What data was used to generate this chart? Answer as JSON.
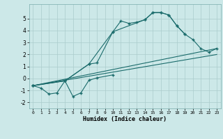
{
  "xlabel": "Humidex (Indice chaleur)",
  "background_color": "#cce8e8",
  "grid_color": "#aacccc",
  "line_color": "#1a6b6b",
  "xlim": [
    -0.5,
    23.5
  ],
  "ylim": [
    -2.5,
    6.2
  ],
  "xticks": [
    0,
    1,
    2,
    3,
    4,
    5,
    6,
    7,
    8,
    9,
    10,
    11,
    12,
    13,
    14,
    15,
    16,
    17,
    18,
    19,
    20,
    21,
    22,
    23
  ],
  "yticks": [
    -2,
    -1,
    0,
    1,
    2,
    3,
    4,
    5
  ],
  "series_zigzag_x": [
    0,
    1,
    2,
    3,
    4,
    5,
    6,
    7,
    8,
    10
  ],
  "series_zigzag_y": [
    -0.6,
    -0.8,
    -1.3,
    -1.2,
    -0.2,
    -1.5,
    -1.2,
    -0.15,
    0.05,
    0.3
  ],
  "series_peak_x": [
    0,
    4,
    7,
    8,
    10,
    11,
    12,
    13,
    14,
    15,
    16,
    17,
    18,
    19
  ],
  "series_peak_y": [
    -0.6,
    -0.2,
    1.2,
    1.3,
    3.9,
    4.8,
    4.6,
    4.7,
    4.9,
    5.5,
    5.5,
    5.3,
    4.4,
    3.7
  ],
  "series_main_x": [
    0,
    4,
    7,
    10,
    14,
    15,
    16,
    17,
    18,
    19,
    20,
    21,
    22,
    23
  ],
  "series_main_y": [
    -0.6,
    -0.2,
    1.2,
    3.9,
    4.9,
    5.5,
    5.5,
    5.3,
    4.4,
    3.7,
    3.25,
    2.5,
    2.2,
    2.5
  ],
  "series_line1_x": [
    0,
    23
  ],
  "series_line1_y": [
    -0.6,
    2.5
  ],
  "series_line2_x": [
    0,
    23
  ],
  "series_line2_y": [
    -0.6,
    2.0
  ]
}
